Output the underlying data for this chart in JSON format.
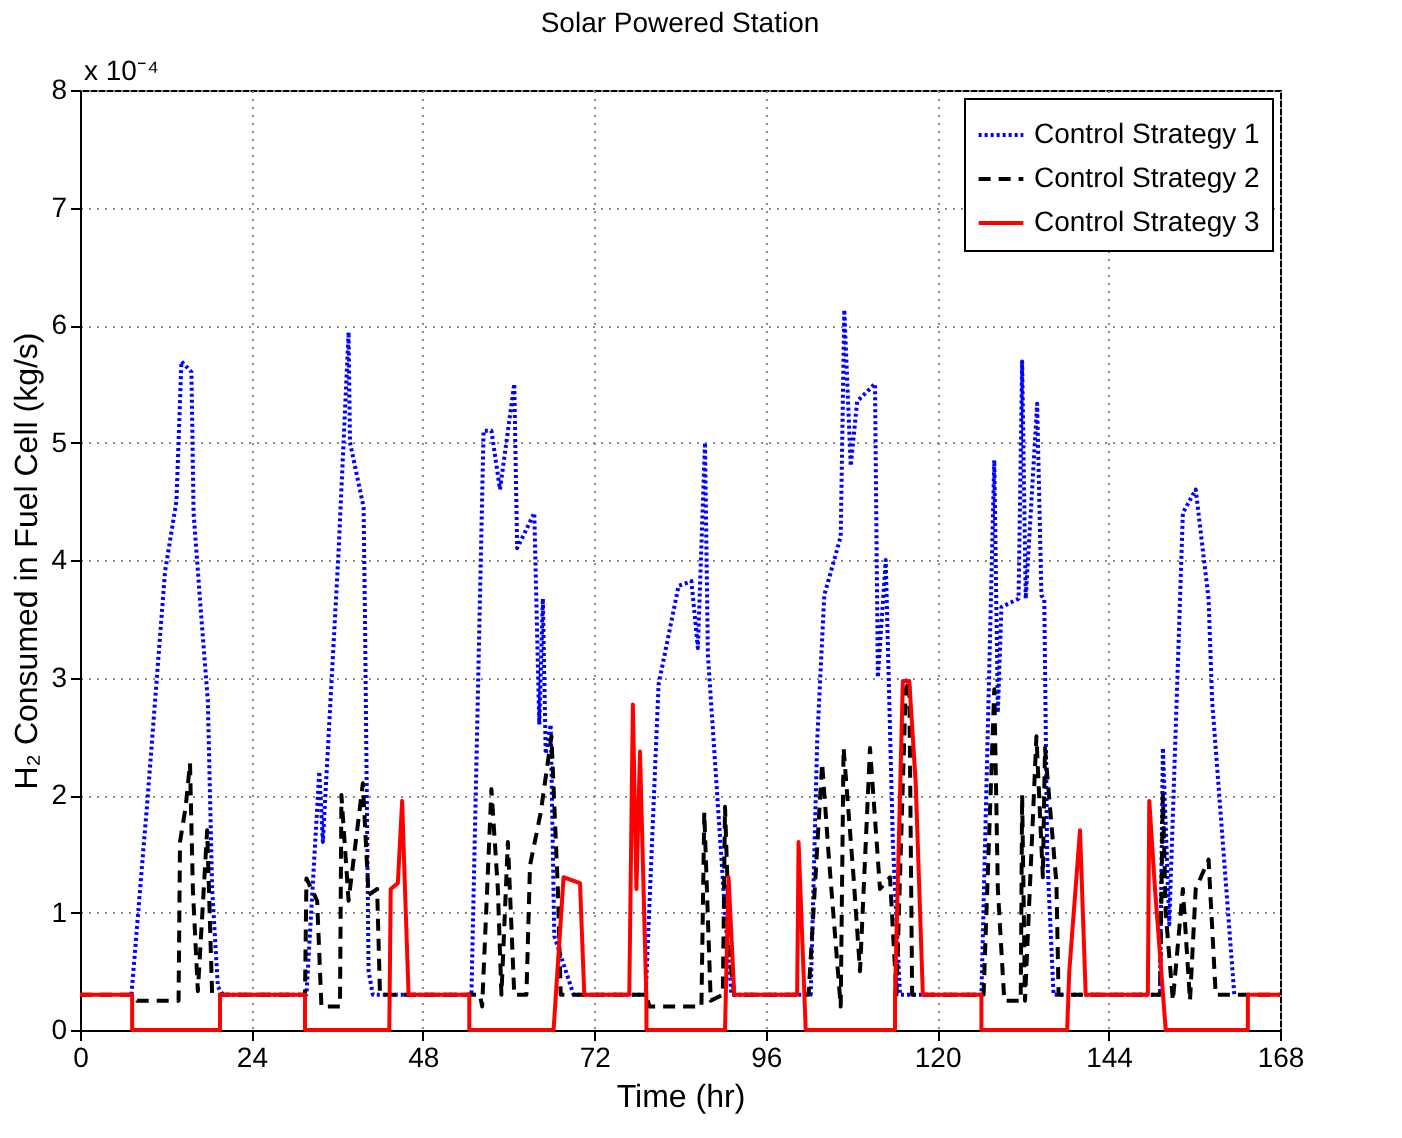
{
  "chart_data": {
    "type": "line",
    "title": "Solar Powered Station",
    "xlabel": "Time (hr)",
    "ylabel": "H₂ Consumed in Fuel Cell (kg/s)",
    "annotations": [
      "x 10⁻⁴"
    ],
    "xlim": [
      0,
      168
    ],
    "xticks": [
      0,
      24,
      48,
      72,
      96,
      120,
      144,
      168
    ],
    "ylim": [
      0,
      8
    ],
    "yticks": [
      0,
      1,
      2,
      3,
      4,
      5,
      6,
      7,
      8
    ],
    "grid": true,
    "legend": "top right",
    "marker": "none",
    "series": [
      {
        "name": "Control Strategy 1",
        "color": "#0000ff",
        "line_style": "dotted",
        "x": [
          7.2,
          9.5,
          11.9,
          13.5,
          14.2,
          15.6,
          15.9,
          17,
          17.9,
          18.5,
          19.3,
          20,
          31.7,
          33.5,
          34,
          36.2,
          37.6,
          37.8,
          39.7,
          39.9,
          40.4,
          41,
          54.8,
          56.5,
          57.6,
          58.8,
          60.8,
          61.2,
          63.6,
          64.3,
          64.8,
          65.2,
          65.9,
          66.4,
          69.1,
          79.2,
          81,
          83.8,
          85.6,
          86.5,
          87.5,
          87.9,
          90.3,
          91.2,
          102.3,
          103.2,
          104.2,
          106.5,
          107,
          107.9,
          108.8,
          111.3,
          111.7,
          112.8,
          113.3,
          113.8,
          114.8,
          126.2,
          128,
          128.5,
          129,
          131.4,
          131.9,
          132.4,
          134,
          134.6,
          135,
          135.4,
          136.3,
          151.2,
          151.6,
          152.5,
          154.4,
          155.3,
          156.2,
          158,
          158.5,
          161.6
        ],
        "values": [
          0.3,
          2.0,
          3.9,
          4.5,
          5.69,
          5.6,
          4.4,
          3.5,
          2.8,
          1.2,
          0.37,
          0.3,
          0.3,
          2.2,
          1.6,
          4.07,
          5.94,
          5.0,
          4.45,
          3.5,
          0.5,
          0.3,
          0.3,
          5.1,
          5.1,
          4.6,
          5.5,
          4.1,
          4.4,
          2.6,
          3.67,
          2.35,
          2.6,
          0.8,
          0.3,
          0.3,
          2.94,
          3.78,
          3.82,
          3.25,
          5.0,
          3.2,
          1.0,
          0.3,
          0.3,
          2.45,
          3.7,
          4.2,
          6.13,
          4.8,
          5.35,
          5.5,
          3.0,
          4.0,
          2.8,
          1.6,
          0.3,
          0.3,
          4.85,
          2.7,
          3.6,
          3.67,
          5.69,
          3.67,
          5.33,
          3.7,
          3.66,
          1.5,
          0.3,
          0.3,
          2.4,
          0.9,
          4.4,
          4.5,
          4.6,
          3.67,
          2.8,
          0.3
        ]
      },
      {
        "name": "Control Strategy 2",
        "color": "#000000",
        "line_style": "dashed",
        "x": [
          0,
          7.5,
          8,
          13.8,
          14,
          14.8,
          15.4,
          15.8,
          16.5,
          17.8,
          18.5,
          31.5,
          31.7,
          33.2,
          33.8,
          36.4,
          36.6,
          37.6,
          39.6,
          40.4,
          41.6,
          42,
          56,
          56.3,
          57.6,
          58.5,
          59,
          59.9,
          60.8,
          62.5,
          63,
          64.5,
          66,
          66.9,
          67.3,
          79.3,
          79.7,
          87,
          87.4,
          88.3,
          90,
          90.3,
          91,
          91.6,
          102,
          103.9,
          104.8,
          106.5,
          106.9,
          108.3,
          109.2,
          110.6,
          112,
          113.4,
          114.3,
          115.6,
          116.1,
          116.5,
          126.5,
          128,
          128.5,
          129.4,
          131.7,
          131.9,
          132.3,
          133.9,
          134.8,
          135.1,
          136.7,
          137,
          151.2,
          151.6,
          152,
          153,
          154.4,
          155.4,
          156.2,
          158,
          159,
          168
        ],
        "values": [
          0.3,
          0.3,
          0.25,
          0.25,
          1.6,
          1.9,
          2.27,
          1.2,
          0.33,
          1.7,
          0.3,
          0.3,
          1.29,
          1.1,
          0.2,
          0.2,
          2.0,
          1.1,
          2.1,
          1.15,
          1.2,
          0.3,
          0.3,
          0.2,
          2.05,
          1.2,
          0.3,
          1.6,
          0.3,
          0.3,
          1.4,
          1.85,
          2.5,
          1.2,
          0.3,
          0.3,
          0.2,
          0.2,
          1.85,
          0.25,
          0.3,
          1.9,
          0.6,
          0.3,
          0.3,
          2.27,
          1.5,
          0.2,
          2.4,
          1.3,
          0.5,
          2.4,
          1.2,
          1.3,
          0.3,
          2.9,
          2.97,
          0.3,
          0.3,
          2.9,
          1.2,
          0.25,
          0.25,
          2.0,
          0.25,
          2.5,
          1.3,
          2.4,
          1.25,
          0.3,
          0.3,
          2.0,
          1.0,
          0.25,
          1.2,
          0.25,
          1.2,
          1.45,
          0.3,
          0.3
        ]
      },
      {
        "name": "Control Strategy 3",
        "color": "#ff0000",
        "line_style": "solid",
        "x": [
          0,
          7.3,
          7.3,
          19.6,
          19.6,
          31.5,
          31.5,
          43.3,
          43.5,
          44.5,
          45.1,
          45.5,
          46,
          54.5,
          54.5,
          66.3,
          67.7,
          70,
          70.6,
          76.9,
          77.4,
          77.9,
          78.4,
          79.3,
          79.3,
          90.3,
          90.8,
          91.6,
          100.4,
          100.6,
          101.6,
          114.1,
          114.1,
          115.2,
          116.1,
          117,
          117.5,
          118,
          126.2,
          126.2,
          138.2,
          138.5,
          140,
          140.8,
          149.5,
          149.7,
          150.5,
          152,
          163.5,
          163.5,
          168
        ],
        "values": [
          0.3,
          0.3,
          0,
          0,
          0.3,
          0.3,
          0,
          0,
          1.2,
          1.25,
          1.95,
          1.2,
          0.3,
          0.3,
          0,
          0,
          1.3,
          1.25,
          0.3,
          0.3,
          2.77,
          1.2,
          2.37,
          0.25,
          0,
          0,
          1.3,
          0.3,
          0.3,
          1.6,
          0,
          0,
          0.3,
          2.97,
          2.97,
          2.1,
          1.2,
          0.3,
          0.3,
          0,
          0,
          0.5,
          1.7,
          0.3,
          0.3,
          1.95,
          1.2,
          0,
          0,
          0.3,
          0.3
        ]
      }
    ]
  }
}
